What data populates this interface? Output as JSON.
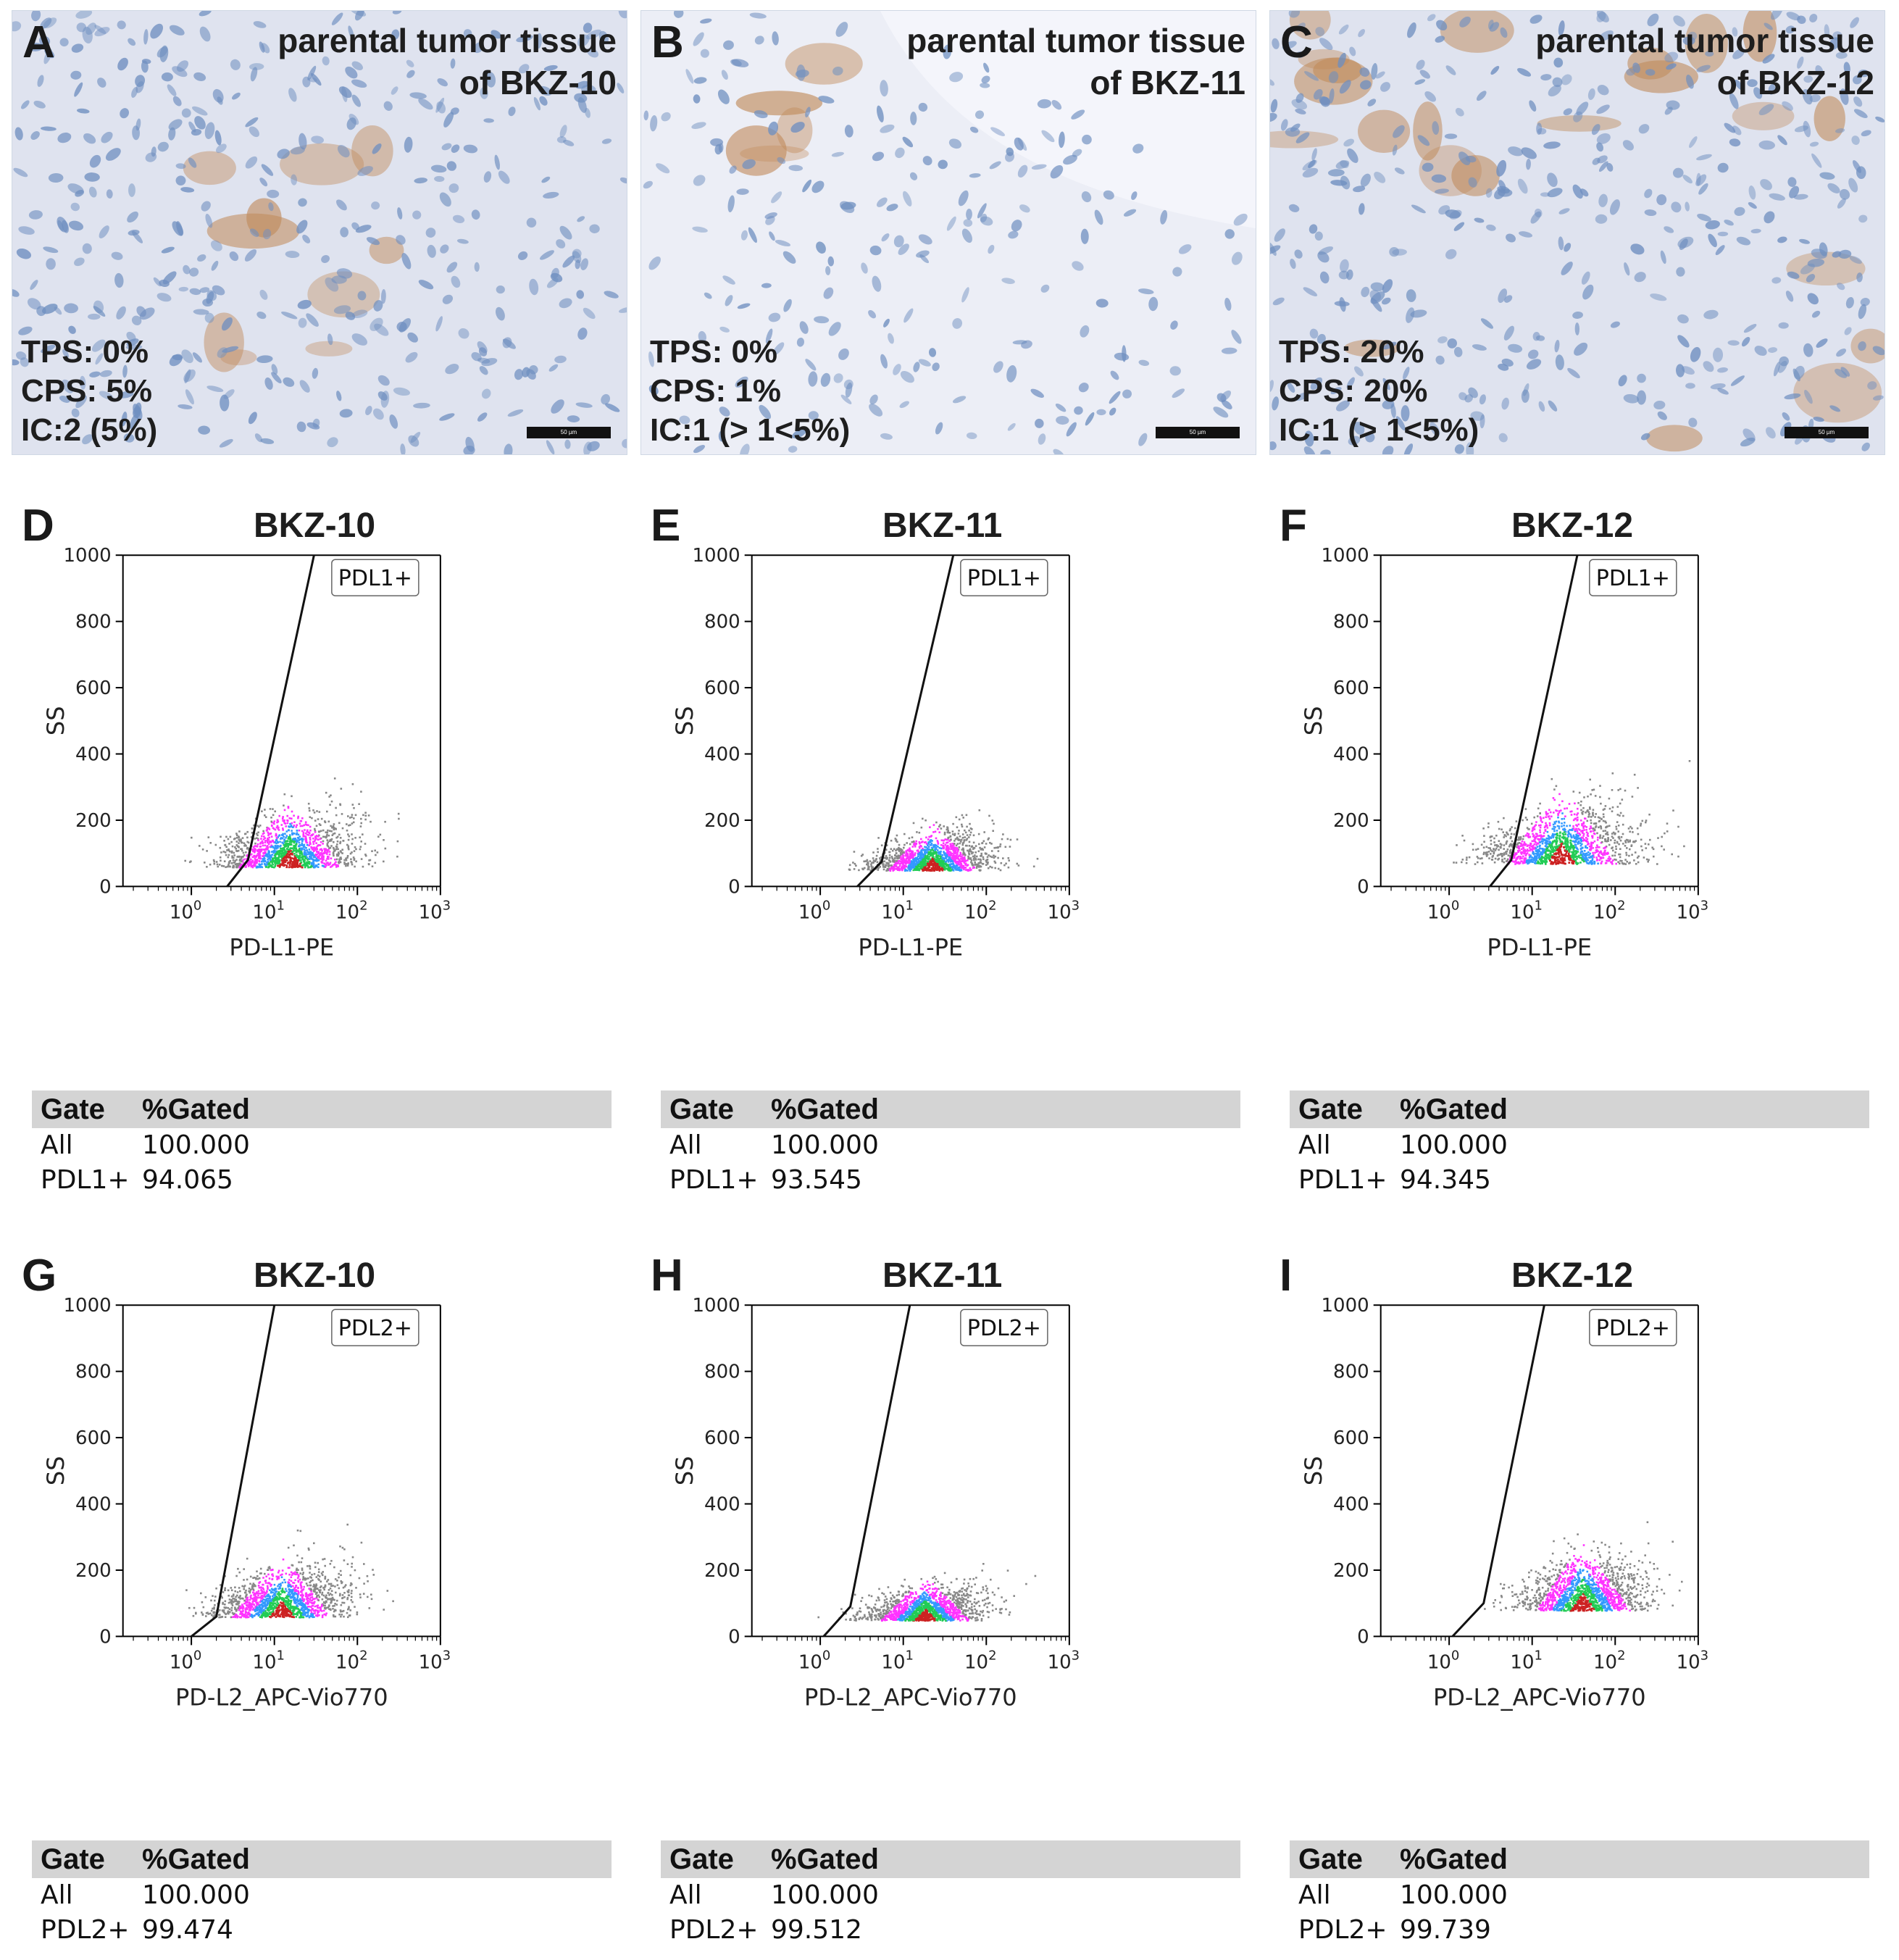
{
  "image_panels": [
    {
      "letter": "A",
      "title_line1": "parental tumor tissue",
      "title_line2": "of BKZ-10",
      "stats": [
        "TPS: 0%",
        "CPS: 5%",
        "IC:2 (5%)"
      ],
      "scale_label": "50 µm",
      "stain": "light"
    },
    {
      "letter": "B",
      "title_line1": "parental tumor tissue",
      "title_line2": "of BKZ-11",
      "stats": [
        "TPS: 0%",
        "CPS: 1%",
        "IC:1 (> 1<5%)"
      ],
      "scale_label": "50 µm",
      "stain": "sparse"
    },
    {
      "letter": "C",
      "title_line1": "parental tumor tissue",
      "title_line2": "of BKZ-12",
      "stats": [
        "TPS: 20%",
        "CPS: 20%",
        "IC:1 (> 1<5%)"
      ],
      "scale_label": "50 µm",
      "stain": "strong"
    }
  ],
  "flow_panels": [
    {
      "letter": "D",
      "title": "BKZ-10",
      "gate_label": "PDL1+",
      "xlabel": "PD-L1-PE",
      "ylabel": "SS",
      "gate_head": [
        "Gate",
        "%Gated"
      ],
      "rows": [
        [
          "All",
          "100.000"
        ],
        [
          "PDL1+",
          "94.065"
        ]
      ]
    },
    {
      "letter": "E",
      "title": "BKZ-11",
      "gate_label": "PDL1+",
      "xlabel": "PD-L1-PE",
      "ylabel": "SS",
      "gate_head": [
        "Gate",
        "%Gated"
      ],
      "rows": [
        [
          "All",
          "100.000"
        ],
        [
          "PDL1+",
          "93.545"
        ]
      ]
    },
    {
      "letter": "F",
      "title": "BKZ-12",
      "gate_label": "PDL1+",
      "xlabel": "PD-L1-PE",
      "ylabel": "SS",
      "gate_head": [
        "Gate",
        "%Gated"
      ],
      "rows": [
        [
          "All",
          "100.000"
        ],
        [
          "PDL1+",
          "94.345"
        ]
      ]
    },
    {
      "letter": "G",
      "title": "BKZ-10",
      "gate_label": "PDL2+",
      "xlabel": "PD-L2_APC-Vio770",
      "ylabel": "SS",
      "gate_head": [
        "Gate",
        "%Gated"
      ],
      "rows": [
        [
          "All",
          "100.000"
        ],
        [
          "PDL2+",
          "99.474"
        ]
      ]
    },
    {
      "letter": "H",
      "title": "BKZ-11",
      "gate_label": "PDL2+",
      "xlabel": "PD-L2_APC-Vio770",
      "ylabel": "SS",
      "gate_head": [
        "Gate",
        "%Gated"
      ],
      "rows": [
        [
          "All",
          "100.000"
        ],
        [
          "PDL2+",
          "99.512"
        ]
      ]
    },
    {
      "letter": "I",
      "title": "BKZ-12",
      "gate_label": "PDL2+",
      "xlabel": "PD-L2_APC-Vio770",
      "ylabel": "SS",
      "gate_head": [
        "Gate",
        "%Gated"
      ],
      "rows": [
        [
          "All",
          "100.000"
        ],
        [
          "PDL2+",
          "99.739"
        ]
      ]
    }
  ],
  "chart_data": [
    {
      "type": "scatter",
      "panel": "D",
      "title": "BKZ-10",
      "xlabel": "PD-L1-PE",
      "ylabel": "SS",
      "xscale": "log",
      "xlim": [
        0.15,
        1000
      ],
      "ylim": [
        0,
        1000
      ],
      "yticks": [
        "0",
        "200",
        "400",
        "600",
        "800",
        "1000"
      ],
      "xticks": [
        "10^0",
        "10^1",
        "10^2",
        "10^3"
      ],
      "gate": {
        "name": "PDL1+",
        "x": [
          2.7,
          4.8,
          30
        ],
        "y": [
          0,
          80,
          1000
        ]
      },
      "population": {
        "center_x": 15,
        "center_y": 60,
        "spread_x": 0.42,
        "spread_y": 70,
        "percent_gated": 94.065
      }
    },
    {
      "type": "scatter",
      "panel": "E",
      "title": "BKZ-11",
      "xlabel": "PD-L1-PE",
      "ylabel": "SS",
      "xscale": "log",
      "xlim": [
        0.15,
        1000
      ],
      "ylim": [
        0,
        1000
      ],
      "yticks": [
        "0",
        "200",
        "400",
        "600",
        "800",
        "1000"
      ],
      "xticks": [
        "10^0",
        "10^1",
        "10^2",
        "10^3"
      ],
      "gate": {
        "name": "PDL1+",
        "x": [
          2.8,
          5.5,
          40
        ],
        "y": [
          0,
          75,
          1000
        ]
      },
      "population": {
        "center_x": 22,
        "center_y": 50,
        "spread_x": 0.36,
        "spread_y": 50,
        "percent_gated": 93.545
      }
    },
    {
      "type": "scatter",
      "panel": "F",
      "title": "BKZ-12",
      "xlabel": "PD-L1-PE",
      "ylabel": "SS",
      "xscale": "log",
      "xlim": [
        0.15,
        1000
      ],
      "ylim": [
        0,
        1000
      ],
      "yticks": [
        "0",
        "200",
        "400",
        "600",
        "800",
        "1000"
      ],
      "xticks": [
        "10^0",
        "10^1",
        "10^2",
        "10^3"
      ],
      "gate": {
        "name": "PDL1+",
        "x": [
          3.1,
          5.6,
          35
        ],
        "y": [
          0,
          80,
          1000
        ]
      },
      "population": {
        "center_x": 22,
        "center_y": 70,
        "spread_x": 0.45,
        "spread_y": 80,
        "percent_gated": 94.345
      }
    },
    {
      "type": "scatter",
      "panel": "G",
      "title": "BKZ-10",
      "xlabel": "PD-L2_APC-Vio770",
      "ylabel": "SS",
      "xscale": "log",
      "xlim": [
        0.15,
        1000
      ],
      "ylim": [
        0,
        1000
      ],
      "yticks": [
        "0",
        "200",
        "400",
        "600",
        "800",
        "1000"
      ],
      "xticks": [
        "10^0",
        "10^1",
        "10^2",
        "10^3"
      ],
      "gate": {
        "name": "PDL2+",
        "x": [
          1.0,
          2.0,
          10
        ],
        "y": [
          0,
          60,
          1000
        ]
      },
      "population": {
        "center_x": 12,
        "center_y": 60,
        "spread_x": 0.4,
        "spread_y": 65,
        "percent_gated": 99.474
      }
    },
    {
      "type": "scatter",
      "panel": "H",
      "title": "BKZ-11",
      "xlabel": "PD-L2_APC-Vio770",
      "ylabel": "SS",
      "xscale": "log",
      "xlim": [
        0.15,
        1000
      ],
      "ylim": [
        0,
        1000
      ],
      "yticks": [
        "0",
        "200",
        "400",
        "600",
        "800",
        "1000"
      ],
      "xticks": [
        "10^0",
        "10^1",
        "10^2",
        "10^3"
      ],
      "gate": {
        "name": "PDL2+",
        "x": [
          1.1,
          2.3,
          12
        ],
        "y": [
          0,
          90,
          1000
        ]
      },
      "population": {
        "center_x": 18,
        "center_y": 50,
        "spread_x": 0.36,
        "spread_y": 45,
        "percent_gated": 99.512
      }
    },
    {
      "type": "scatter",
      "panel": "I",
      "title": "BKZ-12",
      "xlabel": "PD-L2_APC-Vio770",
      "ylabel": "SS",
      "xscale": "log",
      "xlim": [
        0.15,
        1000
      ],
      "ylim": [
        0,
        1000
      ],
      "yticks": [
        "0",
        "200",
        "400",
        "600",
        "800",
        "1000"
      ],
      "xticks": [
        "10^0",
        "10^1",
        "10^2",
        "10^3"
      ],
      "gate": {
        "name": "PDL2+",
        "x": [
          1.1,
          2.6,
          14
        ],
        "y": [
          0,
          100,
          1000
        ]
      },
      "population": {
        "center_x": 40,
        "center_y": 80,
        "spread_x": 0.38,
        "spread_y": 70,
        "percent_gated": 99.739
      }
    }
  ],
  "colors": {
    "axis": "#000000",
    "gate_line": "#111111",
    "density": [
      "#888888",
      "#ff33ff",
      "#3399ff",
      "#22cc55",
      "#cc2222"
    ],
    "gate_bar": "#d4d4d4"
  }
}
